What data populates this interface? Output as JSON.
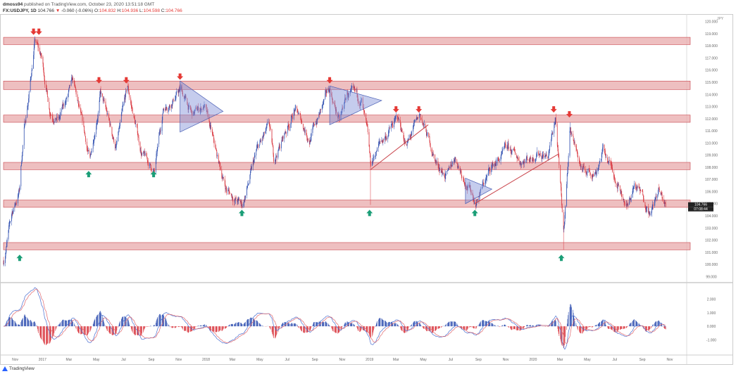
{
  "header": {
    "author": "dmoss94",
    "published_text": "published on TradingView.com, October 23, 2020 13:51:18 GMT",
    "symbol": "FX:USDJPY, 1D",
    "last": "104.766",
    "change": "-0.060 (-0.06%)",
    "open_label": "O:",
    "open": "104.832",
    "high_label": "H:",
    "high": "104.936",
    "low_label": "L:",
    "low": "104.598",
    "close_label": "C:",
    "close": "104.766"
  },
  "footer": {
    "logo_text": "TradingView"
  },
  "colors": {
    "up": "#2f4fb0",
    "down": "#d9363e",
    "zone": "#e8a9ab",
    "zone_line": "#c9444b",
    "arrow_down": "#e53935",
    "arrow_up": "#1b9e77",
    "triangle": "#7f8fd6",
    "trendline": "#c9444b",
    "macd": "#4a6fd1",
    "signal": "#e0676d"
  },
  "chart_data": {
    "type": "candlestick",
    "currency_label": "JPY",
    "y_range": [
      98.5,
      120.5
    ],
    "y_ticks": [
      "120.000",
      "119.000",
      "118.000",
      "117.000",
      "116.000",
      "115.000",
      "114.000",
      "113.000",
      "112.000",
      "111.000",
      "110.000",
      "109.000",
      "108.000",
      "107.000",
      "106.000",
      "105.000",
      "104.000",
      "103.000",
      "102.000",
      "101.000",
      "100.000",
      "99.000"
    ],
    "last_price_label": "104.766",
    "countdown_label": "07:08:44",
    "x_ticks": [
      {
        "label": "Nov",
        "date": "2016-11-01"
      },
      {
        "label": "2017",
        "date": "2017-01-01"
      },
      {
        "label": "Mar",
        "date": "2017-03-01"
      },
      {
        "label": "May",
        "date": "2017-05-01"
      },
      {
        "label": "Jul",
        "date": "2017-07-01"
      },
      {
        "label": "Sep",
        "date": "2017-09-01"
      },
      {
        "label": "Nov",
        "date": "2017-11-01"
      },
      {
        "label": "2018",
        "date": "2018-01-01"
      },
      {
        "label": "Mar",
        "date": "2018-03-01"
      },
      {
        "label": "May",
        "date": "2018-05-01"
      },
      {
        "label": "Jul",
        "date": "2018-07-01"
      },
      {
        "label": "Sep",
        "date": "2018-09-01"
      },
      {
        "label": "Nov",
        "date": "2018-11-01"
      },
      {
        "label": "2019",
        "date": "2019-01-01"
      },
      {
        "label": "Mar",
        "date": "2019-03-01"
      },
      {
        "label": "May",
        "date": "2019-05-01"
      },
      {
        "label": "Jul",
        "date": "2019-07-01"
      },
      {
        "label": "Sep",
        "date": "2019-09-01"
      },
      {
        "label": "Nov",
        "date": "2019-11-01"
      },
      {
        "label": "2020",
        "date": "2020-01-01"
      },
      {
        "label": "Mar",
        "date": "2020-03-01"
      },
      {
        "label": "May",
        "date": "2020-05-01"
      },
      {
        "label": "Jul",
        "date": "2020-07-01"
      },
      {
        "label": "Sep",
        "date": "2020-09-01"
      },
      {
        "label": "Nov",
        "date": "2020-11-01"
      }
    ],
    "x_range": [
      "2016-10-06",
      "2020-12-12"
    ],
    "closes": [
      [
        "2016-10-06",
        100.3
      ],
      [
        "2016-10-25",
        104.2
      ],
      [
        "2016-11-10",
        106.0
      ],
      [
        "2016-11-20",
        110.9
      ],
      [
        "2016-12-01",
        113.8
      ],
      [
        "2016-12-15",
        118.4
      ],
      [
        "2016-12-30",
        116.9
      ],
      [
        "2017-01-17",
        112.8
      ],
      [
        "2017-02-07",
        112.0
      ],
      [
        "2017-03-10",
        114.9
      ],
      [
        "2017-04-17",
        108.4
      ],
      [
        "2017-05-10",
        114.2
      ],
      [
        "2017-06-14",
        109.6
      ],
      [
        "2017-07-10",
        114.4
      ],
      [
        "2017-08-10",
        109.2
      ],
      [
        "2017-09-08",
        107.5
      ],
      [
        "2017-09-28",
        112.9
      ],
      [
        "2017-11-06",
        114.4
      ],
      [
        "2017-12-01",
        112.2
      ],
      [
        "2017-12-28",
        113.1
      ],
      [
        "2018-01-25",
        108.8
      ],
      [
        "2018-02-15",
        106.2
      ],
      [
        "2018-03-23",
        104.8
      ],
      [
        "2018-04-25",
        109.3
      ],
      [
        "2018-05-22",
        111.2
      ],
      [
        "2018-06-01",
        108.5
      ],
      [
        "2018-07-18",
        112.8
      ],
      [
        "2018-08-20",
        110.4
      ],
      [
        "2018-10-04",
        114.4
      ],
      [
        "2018-10-26",
        111.7
      ],
      [
        "2018-11-12",
        114.0
      ],
      [
        "2018-12-14",
        113.4
      ],
      [
        "2018-12-28",
        110.2
      ],
      [
        "2019-01-03",
        107.9
      ],
      [
        "2019-01-20",
        109.7
      ],
      [
        "2019-03-05",
        112.0
      ],
      [
        "2019-03-25",
        109.8
      ],
      [
        "2019-04-24",
        112.2
      ],
      [
        "2019-05-31",
        108.3
      ],
      [
        "2019-06-25",
        107.2
      ],
      [
        "2019-07-10",
        108.9
      ],
      [
        "2019-08-26",
        105.2
      ],
      [
        "2019-09-30",
        108.0
      ],
      [
        "2019-11-06",
        109.4
      ],
      [
        "2019-12-03",
        108.6
      ],
      [
        "2019-12-30",
        108.9
      ],
      [
        "2020-01-10",
        109.5
      ],
      [
        "2020-02-04",
        108.9
      ],
      [
        "2020-02-20",
        112.1
      ],
      [
        "2020-03-09",
        102.5
      ],
      [
        "2020-03-24",
        111.4
      ],
      [
        "2020-04-20",
        107.6
      ],
      [
        "2020-05-20",
        107.7
      ],
      [
        "2020-06-05",
        109.5
      ],
      [
        "2020-06-30",
        107.5
      ],
      [
        "2020-07-31",
        104.7
      ],
      [
        "2020-08-14",
        106.6
      ],
      [
        "2020-09-21",
        104.4
      ],
      [
        "2020-10-07",
        106.0
      ],
      [
        "2020-10-23",
        104.77
      ]
    ],
    "extremes": [
      [
        "2019-01-03",
        "low",
        104.9
      ],
      [
        "2020-03-09",
        "low",
        101.2
      ],
      [
        "2020-03-24",
        "high",
        111.7
      ]
    ],
    "zones": [
      [
        118.1,
        118.7
      ],
      [
        114.4,
        115.1
      ],
      [
        111.7,
        112.3
      ],
      [
        107.8,
        108.4
      ],
      [
        104.7,
        105.3
      ],
      [
        101.2,
        101.8
      ]
    ],
    "resistance_arrows": [
      [
        "2016-12-12",
        118.9
      ],
      [
        "2016-12-24",
        118.9
      ],
      [
        "2017-05-07",
        114.9
      ],
      [
        "2017-07-07",
        114.9
      ],
      [
        "2017-11-04",
        115.2
      ],
      [
        "2018-10-04",
        114.9
      ],
      [
        "2019-03-01",
        112.5
      ],
      [
        "2019-04-21",
        112.5
      ],
      [
        "2020-02-16",
        112.5
      ],
      [
        "2020-03-22",
        112.1
      ]
    ],
    "support_arrows": [
      [
        "2016-11-11",
        100.8
      ],
      [
        "2017-04-14",
        107.7
      ],
      [
        "2017-09-06",
        107.7
      ],
      [
        "2018-03-22",
        104.5
      ],
      [
        "2019-01-01",
        104.5
      ],
      [
        "2019-08-24",
        104.5
      ],
      [
        "2020-03-04",
        100.8
      ]
    ],
    "triangles": [
      [
        [
          "2017-11-04",
          115.1
        ],
        [
          "2017-11-04",
          110.9
        ],
        [
          "2018-02-08",
          112.6
        ]
      ],
      [
        [
          "2018-10-04",
          114.7
        ],
        [
          "2018-10-04",
          111.5
        ],
        [
          "2019-01-28",
          113.5
        ]
      ],
      [
        [
          "2019-08-03",
          107.1
        ],
        [
          "2019-08-03",
          105.0
        ],
        [
          "2019-10-01",
          106.2
        ]
      ]
    ],
    "trendlines": [
      [
        [
          "2019-01-03",
          107.8
        ],
        [
          "2019-05-12",
          111.5
        ]
      ],
      [
        [
          "2019-08-24",
          105.0
        ],
        [
          "2020-02-27",
          109.1
        ]
      ]
    ],
    "macd": {
      "fast": 12,
      "slow": 26,
      "signal": 9,
      "y_ticks": [
        "2.000",
        "1.000",
        "0.000",
        "-1.000"
      ],
      "y_range": [
        -1.9,
        3.0
      ]
    }
  }
}
